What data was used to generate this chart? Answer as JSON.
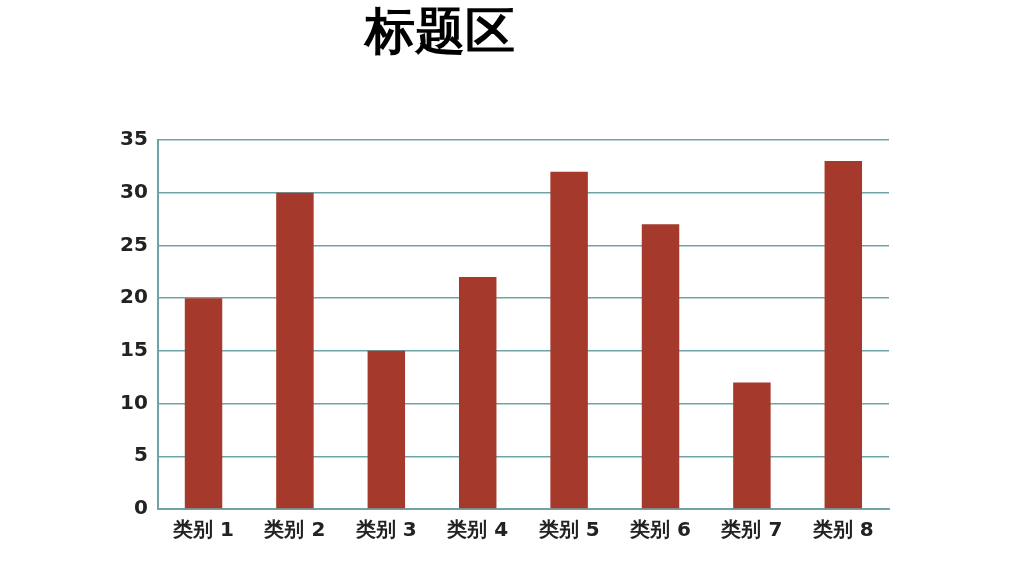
{
  "chart_data": {
    "type": "bar",
    "title": "标题区",
    "categories": [
      "类别 1",
      "类别 2",
      "类别 3",
      "类别 4",
      "类别 5",
      "类别 6",
      "类别 7",
      "类别 8"
    ],
    "values": [
      20,
      30,
      15,
      22,
      32,
      27,
      12,
      33
    ],
    "color": "#a5392b",
    "ylim": [
      0,
      35
    ],
    "yticks": [
      0,
      5,
      10,
      15,
      20,
      25,
      30,
      35
    ],
    "grid": "y",
    "legend": false
  }
}
